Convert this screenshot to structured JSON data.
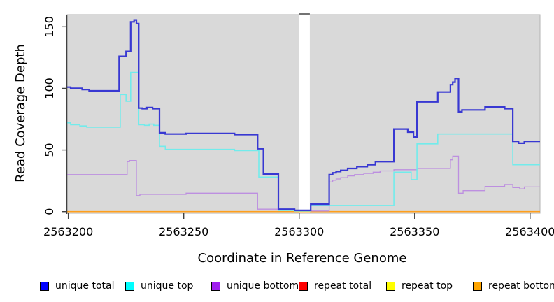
{
  "figure": {
    "background": "#ffffff"
  },
  "chart_data": {
    "type": "line",
    "step_interpolation": "step-after",
    "title": "",
    "xlabel": "Coordinate in Reference Genome",
    "ylabel": "Read Coverage Depth",
    "xlim": [
      2563199.5,
      2563404.3
    ],
    "ylim": [
      0,
      160
    ],
    "grid": false,
    "plot_background": "#d9d9d9",
    "plot_border_color": "#b3b3b3",
    "axis_color": "#404040",
    "x_ticks": {
      "values": [
        2563200,
        2563250,
        2563300,
        2563350,
        2563400
      ],
      "labels": [
        "2563200",
        "2563250",
        "2563300",
        "2563350",
        "2563400"
      ]
    },
    "y_ticks": {
      "values": [
        0,
        50,
        100,
        150
      ],
      "labels": [
        "0",
        "50",
        "100",
        "150"
      ]
    },
    "masked_region": {
      "x_start": 2563300,
      "x_end": 2563304.6,
      "fill": "#ffffff",
      "cap_color": "#737373"
    },
    "series": [
      {
        "name": "repeat total",
        "color": "#ff0000",
        "line_width": 1,
        "points": [
          [
            2563199.5,
            0
          ]
        ]
      },
      {
        "name": "repeat top",
        "color": "#ffff00",
        "line_width": 1,
        "points": [
          [
            2563199.5,
            0
          ]
        ]
      },
      {
        "name": "repeat bottom",
        "color": "#ff9e1b",
        "line_width": 1.6,
        "points": [
          [
            2563199.5,
            0
          ]
        ]
      },
      {
        "name": "unique bottom",
        "color": "#bd8fe0",
        "line_width": 1.3,
        "points": [
          [
            2563199.5,
            30
          ],
          [
            2563225.5,
            40.5
          ],
          [
            2563226.5,
            41.5
          ],
          [
            2563229.5,
            13
          ],
          [
            2563231,
            14
          ],
          [
            2563251,
            15
          ],
          [
            2563282,
            2
          ],
          [
            2563291,
            1
          ],
          [
            2563298,
            0.5
          ],
          [
            2563313,
            24
          ],
          [
            2563314.5,
            25.5
          ],
          [
            2563316,
            26.5
          ],
          [
            2563318,
            27.5
          ],
          [
            2563321,
            29
          ],
          [
            2563324,
            30
          ],
          [
            2563328,
            31
          ],
          [
            2563332,
            32
          ],
          [
            2563335,
            33
          ],
          [
            2563341,
            34
          ],
          [
            2563351,
            35
          ],
          [
            2563365.5,
            42
          ],
          [
            2563366.5,
            45
          ],
          [
            2563369,
            15
          ],
          [
            2563371,
            17
          ],
          [
            2563380.5,
            20.5
          ],
          [
            2563389,
            22
          ],
          [
            2563392.5,
            19.5
          ],
          [
            2563395.5,
            18.5
          ],
          [
            2563397.5,
            20
          ]
        ]
      },
      {
        "name": "unique top",
        "color": "#72ebeb",
        "line_width": 1.6,
        "points": [
          [
            2563199.5,
            72
          ],
          [
            2563201,
            70.5
          ],
          [
            2563205,
            69.5
          ],
          [
            2563208,
            68.5
          ],
          [
            2563222.5,
            95
          ],
          [
            2563225,
            89.5
          ],
          [
            2563227,
            113
          ],
          [
            2563230.5,
            70.5
          ],
          [
            2563233,
            70
          ],
          [
            2563235,
            71
          ],
          [
            2563237,
            70
          ],
          [
            2563239.5,
            53
          ],
          [
            2563242,
            50.5
          ],
          [
            2563272,
            49.5
          ],
          [
            2563282.5,
            28
          ],
          [
            2563291,
            1
          ],
          [
            2563298,
            0.5
          ],
          [
            2563305,
            5
          ],
          [
            2563341,
            32
          ],
          [
            2563348.5,
            26
          ],
          [
            2563351,
            55
          ],
          [
            2563360,
            63
          ],
          [
            2563392.5,
            38
          ]
        ]
      },
      {
        "name": "unique total",
        "color": "#3838d2",
        "line_width": 2.2,
        "points": [
          [
            2563199.5,
            101
          ],
          [
            2563201,
            100
          ],
          [
            2563206,
            99
          ],
          [
            2563209,
            98
          ],
          [
            2563222,
            126
          ],
          [
            2563225,
            130
          ],
          [
            2563227,
            154
          ],
          [
            2563228.5,
            155.5
          ],
          [
            2563229.5,
            152.5
          ],
          [
            2563230.5,
            84
          ],
          [
            2563232,
            83.5
          ],
          [
            2563234,
            84.5
          ],
          [
            2563236.5,
            83.5
          ],
          [
            2563239.5,
            64
          ],
          [
            2563242,
            63
          ],
          [
            2563251,
            63.5
          ],
          [
            2563272,
            62.5
          ],
          [
            2563282,
            51
          ],
          [
            2563284.5,
            30.5
          ],
          [
            2563291,
            2
          ],
          [
            2563298,
            1
          ],
          [
            2563305,
            6
          ],
          [
            2563313,
            30
          ],
          [
            2563314.5,
            31.5
          ],
          [
            2563316,
            32.5
          ],
          [
            2563318,
            33.5
          ],
          [
            2563321,
            35
          ],
          [
            2563325,
            36.5
          ],
          [
            2563329.5,
            38
          ],
          [
            2563333,
            40.5
          ],
          [
            2563341,
            67
          ],
          [
            2563347,
            64.5
          ],
          [
            2563349.5,
            60.5
          ],
          [
            2563351,
            89
          ],
          [
            2563360,
            97
          ],
          [
            2563365.5,
            103
          ],
          [
            2563366.5,
            105
          ],
          [
            2563367.5,
            108
          ],
          [
            2563369,
            81
          ],
          [
            2563370.5,
            82.5
          ],
          [
            2563380.5,
            85
          ],
          [
            2563389,
            83.5
          ],
          [
            2563392.5,
            57
          ],
          [
            2563395,
            55.5
          ],
          [
            2563397.5,
            57
          ]
        ]
      }
    ]
  },
  "legend": {
    "items": [
      {
        "label": "unique total",
        "color": "#0000ff"
      },
      {
        "label": "unique top",
        "color": "#00ffff"
      },
      {
        "label": "unique bottom",
        "color": "#a020f0"
      },
      {
        "label": "repeat total",
        "color": "#ff0000"
      },
      {
        "label": "repeat top",
        "color": "#ffff00"
      },
      {
        "label": "repeat bottom",
        "color": "#ffa500"
      }
    ]
  }
}
